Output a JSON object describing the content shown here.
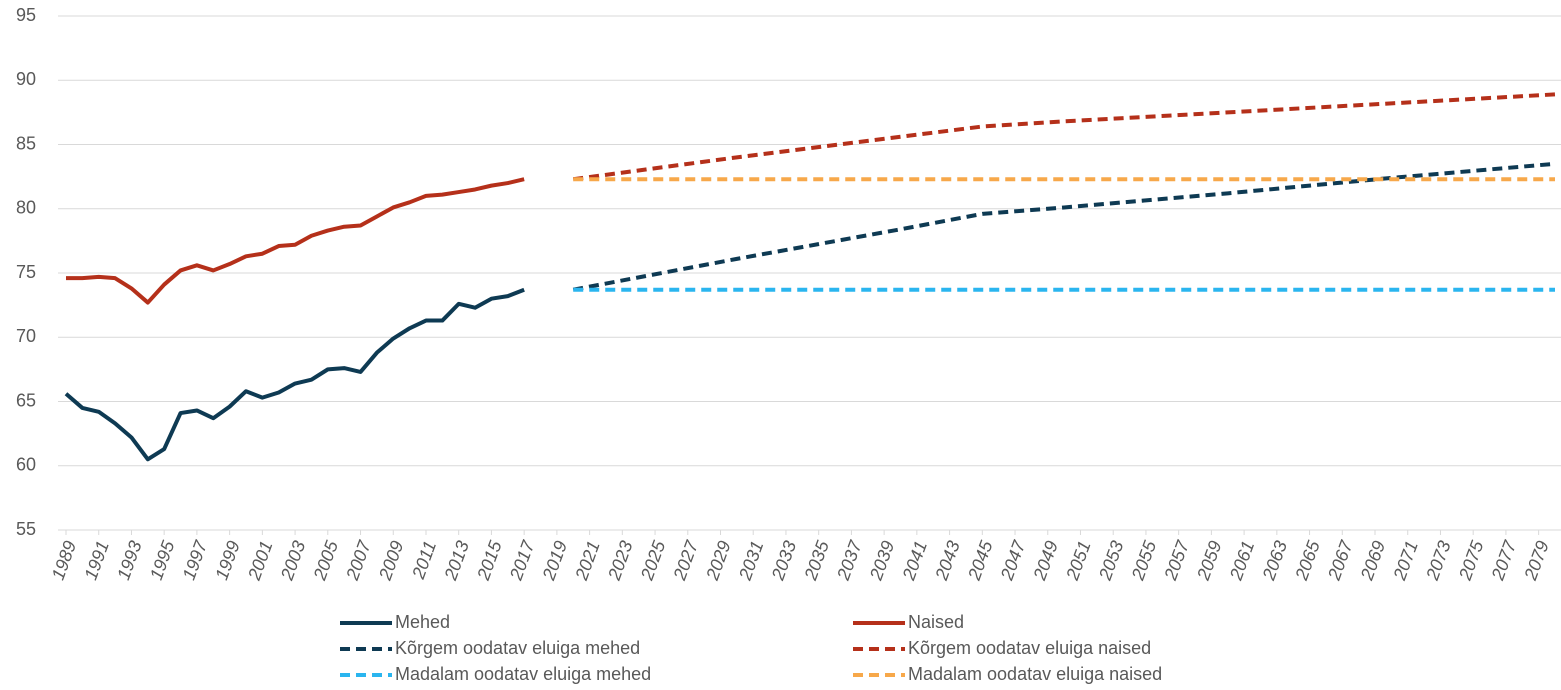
{
  "chart_data": {
    "type": "line",
    "xlim": [
      1989,
      2080
    ],
    "xticks": [
      1989,
      1991,
      1993,
      1995,
      1997,
      1999,
      2001,
      2003,
      2005,
      2007,
      2009,
      2011,
      2013,
      2015,
      2017,
      2019,
      2021,
      2023,
      2025,
      2027,
      2029,
      2031,
      2033,
      2035,
      2037,
      2039,
      2041,
      2043,
      2045,
      2047,
      2049,
      2051,
      2053,
      2055,
      2057,
      2059,
      2061,
      2063,
      2065,
      2067,
      2069,
      2071,
      2073,
      2075,
      2077,
      2079
    ],
    "ylim": [
      55,
      95
    ],
    "yticks": [
      55,
      60,
      65,
      70,
      75,
      80,
      85,
      90,
      95
    ],
    "grid": true,
    "legend": "bottom",
    "series": [
      {
        "name": "Mehed",
        "color": "#0e3a53",
        "dashed": false,
        "x": [
          1989,
          1990,
          1991,
          1992,
          1993,
          1994,
          1995,
          1996,
          1997,
          1998,
          1999,
          2000,
          2001,
          2002,
          2003,
          2004,
          2005,
          2006,
          2007,
          2008,
          2009,
          2010,
          2011,
          2012,
          2013,
          2014,
          2015,
          2016,
          2017
        ],
        "values": [
          65.6,
          64.5,
          64.2,
          63.3,
          62.2,
          60.5,
          61.3,
          64.1,
          64.3,
          63.7,
          64.6,
          65.8,
          65.3,
          65.7,
          66.4,
          66.7,
          67.5,
          67.6,
          67.3,
          68.8,
          69.9,
          70.7,
          71.3,
          71.3,
          72.6,
          72.3,
          73.0,
          73.2,
          73.7
        ]
      },
      {
        "name": "Naised",
        "color": "#b5301a",
        "dashed": false,
        "x": [
          1989,
          1990,
          1991,
          1992,
          1993,
          1994,
          1995,
          1996,
          1997,
          1998,
          1999,
          2000,
          2001,
          2002,
          2003,
          2004,
          2005,
          2006,
          2007,
          2008,
          2009,
          2010,
          2011,
          2012,
          2013,
          2014,
          2015,
          2016,
          2017
        ],
        "values": [
          74.6,
          74.6,
          74.7,
          74.6,
          73.8,
          72.7,
          74.1,
          75.2,
          75.6,
          75.2,
          75.7,
          76.3,
          76.5,
          77.1,
          77.2,
          77.9,
          78.3,
          78.6,
          78.7,
          79.4,
          80.1,
          80.5,
          81.0,
          81.1,
          81.3,
          81.5,
          81.8,
          82.0,
          82.3
        ]
      },
      {
        "name": "Kõrgem oodatav eluiga mehed",
        "color": "#0e3a53",
        "dashed": true,
        "x": [
          2020,
          2030,
          2040,
          2045,
          2050,
          2060,
          2070,
          2080
        ],
        "values": [
          73.7,
          76.1,
          78.4,
          79.6,
          80.1,
          81.2,
          82.4,
          83.5
        ]
      },
      {
        "name": "Kõrgem oodatav eluiga naised",
        "color": "#b5301a",
        "dashed": true,
        "x": [
          2020,
          2030,
          2040,
          2045,
          2050,
          2060,
          2070,
          2080
        ],
        "values": [
          82.3,
          84.0,
          85.6,
          86.4,
          86.8,
          87.5,
          88.2,
          88.9
        ]
      },
      {
        "name": "Madalam oodatav eluiga mehed",
        "color": "#2ab5ef",
        "dashed": true,
        "x": [
          2020,
          2080
        ],
        "values": [
          73.7,
          73.7
        ]
      },
      {
        "name": "Madalam oodatav eluiga naised",
        "color": "#f7a84a",
        "dashed": true,
        "x": [
          2020,
          2080
        ],
        "values": [
          82.3,
          82.3
        ]
      }
    ]
  }
}
